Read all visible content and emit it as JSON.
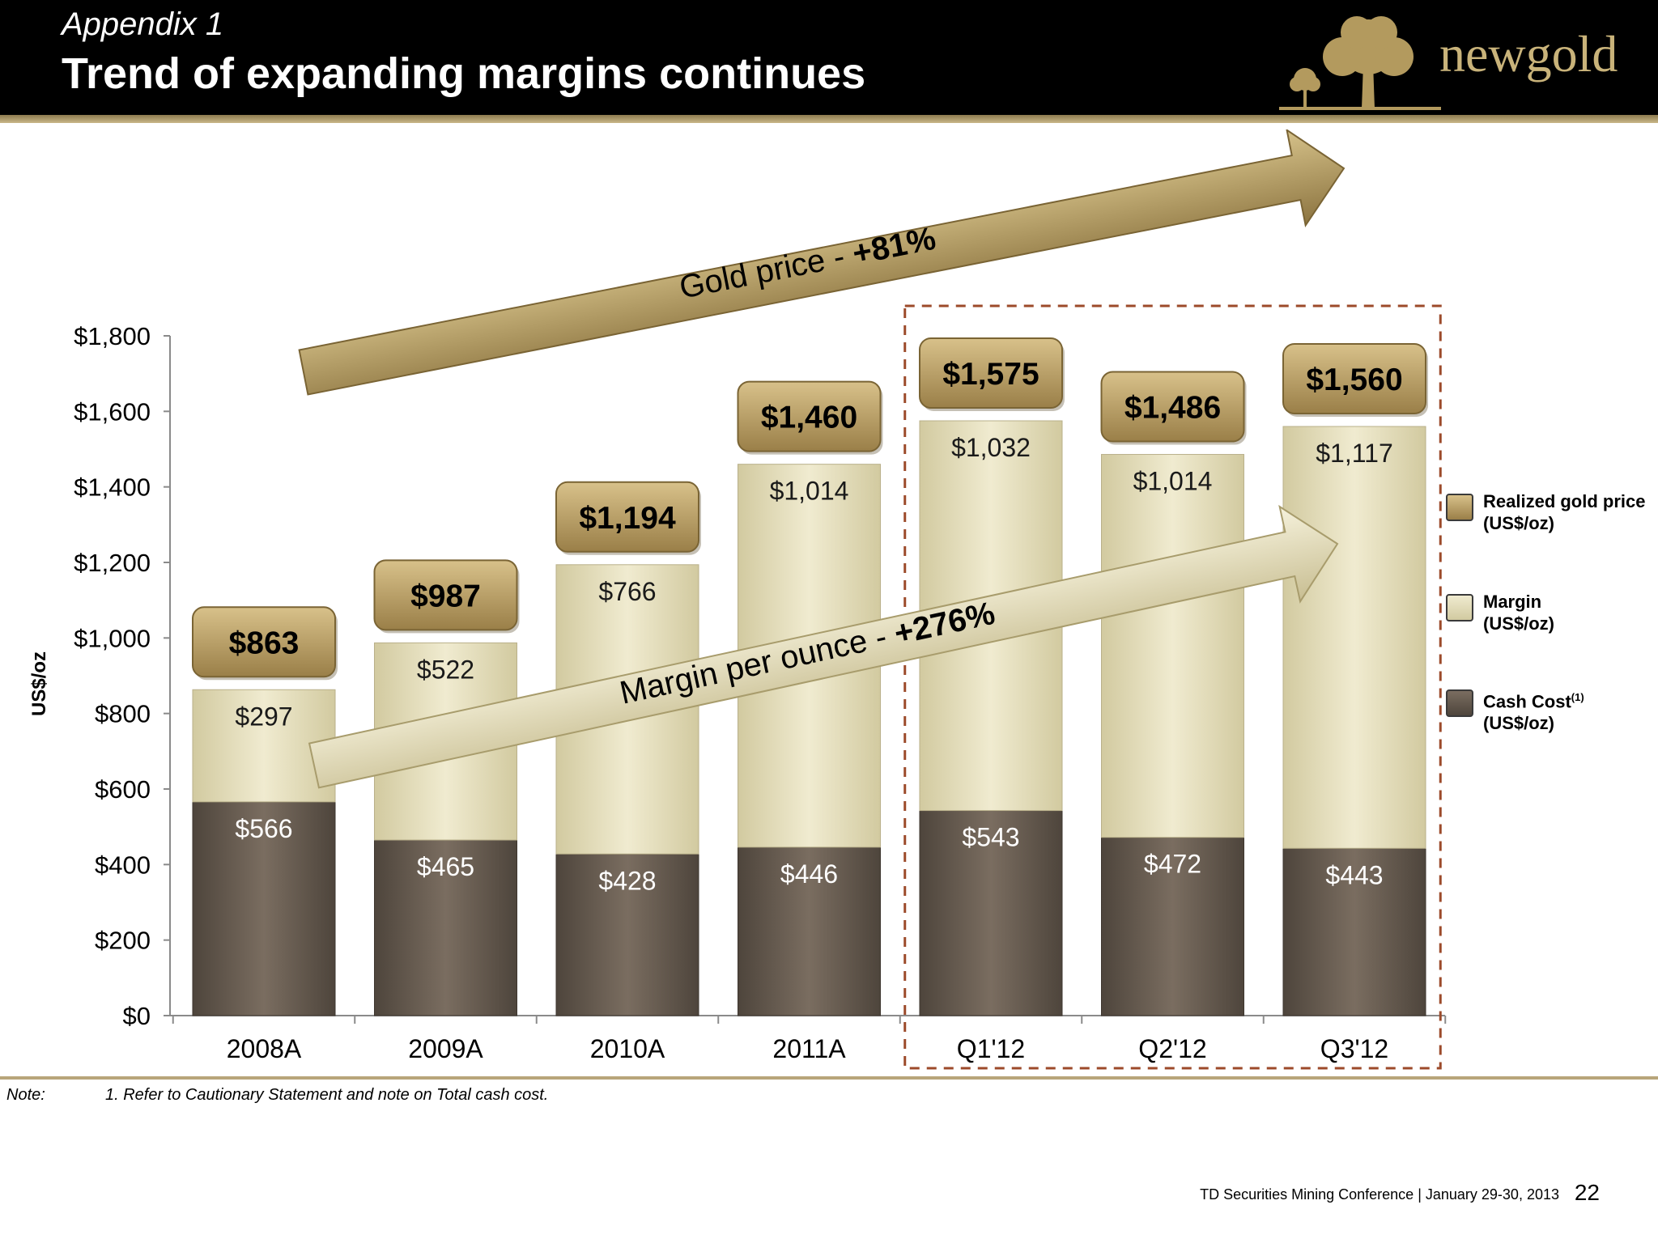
{
  "header": {
    "appendix": "Appendix 1",
    "title": "Trend of expanding margins continues",
    "logo_text": "newgold"
  },
  "chart_data": {
    "type": "bar",
    "stacked": true,
    "categories": [
      "2008A",
      "2009A",
      "2010A",
      "2011A",
      "Q1'12",
      "Q2'12",
      "Q3'12"
    ],
    "series": [
      {
        "name": "Cash Cost(1) (US$/oz)",
        "values": [
          566,
          465,
          428,
          446,
          543,
          472,
          443
        ]
      },
      {
        "name": "Margin (US$/oz)",
        "values": [
          297,
          522,
          766,
          1014,
          1032,
          1014,
          1117
        ]
      }
    ],
    "totals": {
      "name": "Realized gold price (US$/oz)",
      "values": [
        863,
        987,
        1194,
        1460,
        1575,
        1486,
        1560
      ]
    },
    "value_labels": {
      "cash_cost": [
        "$566",
        "$465",
        "$428",
        "$446",
        "$543",
        "$472",
        "$443"
      ],
      "margin": [
        "$297",
        "$522",
        "$766",
        "$1,014",
        "$1,032",
        "$1,014",
        "$1,117"
      ],
      "total": [
        "$863",
        "$987",
        "$1,194",
        "$1,460",
        "$1,575",
        "$1,486",
        "$1,560"
      ]
    },
    "ylabel": "US$/oz",
    "ylim": [
      0,
      1800
    ],
    "yticks": [
      0,
      200,
      400,
      600,
      800,
      1000,
      1200,
      1400,
      1600,
      1800
    ],
    "ytick_labels": [
      "$0",
      "$200",
      "$400",
      "$600",
      "$800",
      "$1,000",
      "$1,200",
      "$1,400",
      "$1,600",
      "$1,800"
    ],
    "legend_placement": "right",
    "highlight_categories": [
      "Q1'12",
      "Q2'12",
      "Q3'12"
    ],
    "annotations": [
      {
        "prefix": "Gold price - ",
        "value": "+81%"
      },
      {
        "prefix": "Margin per ounce - ",
        "value": "+276%"
      }
    ],
    "colors": {
      "cash_cost": "#6b5e52",
      "margin": "#e8e2c2",
      "total": "#b49a60"
    }
  },
  "legend": [
    {
      "label": "Realized gold price\n(US$/oz)",
      "color": "#b49a60"
    },
    {
      "label": "Margin\n(US$/oz)",
      "color": "#e8e2c2"
    },
    {
      "label": "Cash Cost",
      "sup": "(1)",
      "line2": "(US$/oz)",
      "color": "#6b5e52"
    }
  ],
  "footer": {
    "note_label": "Note:",
    "note_text": "1. Refer to Cautionary Statement and note on Total cash cost.",
    "conference": "TD Securities Mining Conference  |  January 29-30, 2013",
    "page_number": "22"
  }
}
